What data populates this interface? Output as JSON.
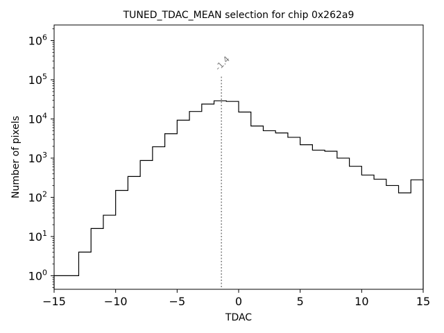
{
  "chart_data": {
    "type": "histogram",
    "title": "TUNED_TDAC_MEAN selection for chip 0x262a9",
    "xlabel": "TDAC",
    "ylabel": "Number of pixels",
    "xlim": [
      -15,
      15
    ],
    "ylim": [
      0.45,
      2500000
    ],
    "yscale": "log",
    "grid": false,
    "x_ticks": [
      -15,
      -10,
      -5,
      0,
      5,
      10,
      15
    ],
    "x_tick_labels": [
      "−15",
      "−10",
      "−5",
      "0",
      "5",
      "10",
      "15"
    ],
    "y_ticks": [
      {
        "value": 1,
        "base": "10",
        "exp": "0"
      },
      {
        "value": 10,
        "base": "10",
        "exp": "1"
      },
      {
        "value": 100,
        "base": "10",
        "exp": "2"
      },
      {
        "value": 1000,
        "base": "10",
        "exp": "3"
      },
      {
        "value": 10000,
        "base": "10",
        "exp": "4"
      },
      {
        "value": 100000,
        "base": "10",
        "exp": "5"
      },
      {
        "value": 1000000,
        "base": "10",
        "exp": "6"
      }
    ],
    "bins": [
      {
        "x0": -15,
        "x1": -14,
        "count": 1
      },
      {
        "x0": -14,
        "x1": -13,
        "count": 1
      },
      {
        "x0": -13,
        "x1": -12,
        "count": 4
      },
      {
        "x0": -12,
        "x1": -11,
        "count": 16
      },
      {
        "x0": -11,
        "x1": -10,
        "count": 35
      },
      {
        "x0": -10,
        "x1": -9,
        "count": 150
      },
      {
        "x0": -9,
        "x1": -8,
        "count": 340
      },
      {
        "x0": -8,
        "x1": -7,
        "count": 870
      },
      {
        "x0": -7,
        "x1": -6,
        "count": 1950
      },
      {
        "x0": -6,
        "x1": -5,
        "count": 4200
      },
      {
        "x0": -5,
        "x1": -4,
        "count": 9300
      },
      {
        "x0": -4,
        "x1": -3,
        "count": 15500
      },
      {
        "x0": -3,
        "x1": -2,
        "count": 24000
      },
      {
        "x0": -2,
        "x1": -1,
        "count": 29000
      },
      {
        "x0": -1,
        "x1": 0,
        "count": 28000
      },
      {
        "x0": 0,
        "x1": 1,
        "count": 15000
      },
      {
        "x0": 1,
        "x1": 2,
        "count": 6600
      },
      {
        "x0": 2,
        "x1": 3,
        "count": 5000
      },
      {
        "x0": 3,
        "x1": 4,
        "count": 4400
      },
      {
        "x0": 4,
        "x1": 5,
        "count": 3400
      },
      {
        "x0": 5,
        "x1": 6,
        "count": 2200
      },
      {
        "x0": 6,
        "x1": 7,
        "count": 1600
      },
      {
        "x0": 7,
        "x1": 8,
        "count": 1500
      },
      {
        "x0": 8,
        "x1": 9,
        "count": 1000
      },
      {
        "x0": 9,
        "x1": 10,
        "count": 620
      },
      {
        "x0": 10,
        "x1": 11,
        "count": 370
      },
      {
        "x0": 11,
        "x1": 12,
        "count": 290
      },
      {
        "x0": 12,
        "x1": 13,
        "count": 200
      },
      {
        "x0": 13,
        "x1": 14,
        "count": 130
      },
      {
        "x0": 14,
        "x1": 15,
        "count": 280
      }
    ],
    "annotation": {
      "label": "-1.4",
      "x": -1.4,
      "line_style": "dotted",
      "line_top": 120000,
      "color": "#808080"
    },
    "colors": {
      "histogram": "#000000",
      "annotation": "#808080",
      "frame": "#000000"
    }
  }
}
